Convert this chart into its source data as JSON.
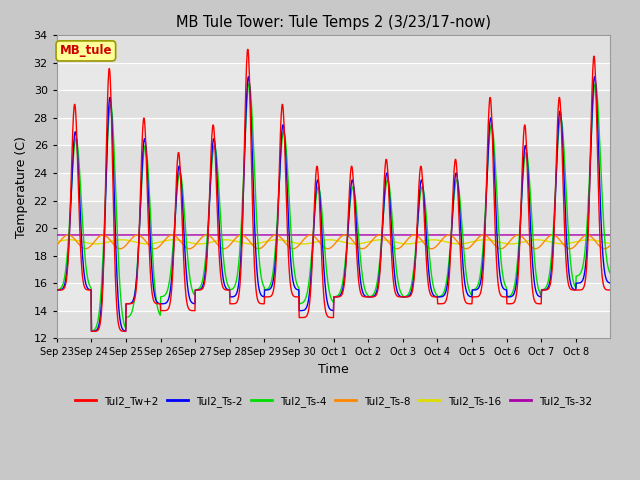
{
  "title": "MB Tule Tower: Tule Temps 2 (3/23/17-now)",
  "xlabel": "Time",
  "ylabel": "Temperature (C)",
  "ylim": [
    12,
    34
  ],
  "yticks": [
    12,
    14,
    16,
    18,
    20,
    22,
    24,
    26,
    28,
    30,
    32,
    34
  ],
  "annotation_label": "MB_tule",
  "annotation_color": "#cc0000",
  "annotation_bg": "#ffff99",
  "fig_bg": "#c8c8c8",
  "plot_bg": "#e8e8e8",
  "grid_color": "#ffffff",
  "series": [
    {
      "label": "Tul2_Tw+2",
      "color": "#ff0000"
    },
    {
      "label": "Tul2_Ts-2",
      "color": "#0000ff"
    },
    {
      "label": "Tul2_Ts-4",
      "color": "#00dd00"
    },
    {
      "label": "Tul2_Ts-8",
      "color": "#ff8800"
    },
    {
      "label": "Tul2_Ts-16",
      "color": "#dddd00"
    },
    {
      "label": "Tul2_Ts-32",
      "color": "#aa00aa"
    }
  ],
  "x_tick_labels": [
    "Sep 23",
    "Sep 24",
    "Sep 25",
    "Sep 26",
    "Sep 27",
    "Sep 28",
    "Sep 29",
    "Sep 30",
    "Oct 1",
    "Oct 2",
    "Oct 3",
    "Oct 4",
    "Oct 5",
    "Oct 6",
    "Oct 7",
    "Oct 8"
  ],
  "n_days": 16,
  "peaks_Tw2": [
    29.0,
    31.6,
    28.0,
    25.5,
    27.5,
    33.0,
    29.0,
    24.5,
    24.5,
    25.0,
    24.5,
    25.0,
    29.5,
    27.5,
    29.5,
    32.5
  ],
  "lows_Tw2": [
    15.5,
    12.5,
    14.5,
    14.0,
    15.5,
    14.5,
    15.0,
    13.5,
    15.0,
    15.0,
    15.0,
    14.5,
    15.0,
    14.5,
    15.5,
    15.5
  ],
  "peaks_Ts2": [
    27.0,
    29.5,
    26.5,
    24.5,
    26.5,
    31.0,
    27.5,
    23.5,
    23.5,
    24.0,
    23.5,
    24.0,
    28.0,
    26.0,
    28.5,
    31.0
  ],
  "lows_Ts2": [
    15.5,
    12.5,
    14.5,
    14.5,
    15.5,
    15.0,
    15.5,
    14.0,
    15.0,
    15.0,
    15.0,
    15.0,
    15.5,
    15.0,
    15.5,
    16.0
  ],
  "peaks_Ts4": [
    26.5,
    29.0,
    26.0,
    24.0,
    26.0,
    30.5,
    27.0,
    23.0,
    23.0,
    23.5,
    23.0,
    23.5,
    27.5,
    25.5,
    28.0,
    30.5
  ],
  "lows_Ts4": [
    15.5,
    12.5,
    13.5,
    15.0,
    15.5,
    15.5,
    15.5,
    14.5,
    15.0,
    15.0,
    15.0,
    15.0,
    15.5,
    15.0,
    15.5,
    16.5
  ],
  "orange_mid": 19.0,
  "orange_amp": 0.5,
  "yellow_mid": 19.0,
  "yellow_amp": 0.15,
  "purple_val": 19.5
}
